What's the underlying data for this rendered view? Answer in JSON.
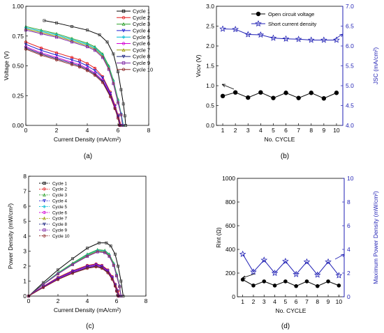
{
  "panel_labels": [
    "(a)",
    "(b)",
    "(c)",
    "(d)"
  ],
  "colors": {
    "cycles": [
      "#000000",
      "#e31a1c",
      "#2ca02c",
      "#1f1fd0",
      "#00bcd4",
      "#d400d4",
      "#9a9a00",
      "#1a237e",
      "#7a1fa2",
      "#8b2323"
    ],
    "cycle1_marker": "#444444",
    "blue_axis": "#1f1fb4"
  },
  "chart_data": [
    {
      "type": "line",
      "panel": "(a)",
      "xlabel": "Current Density (mA/cm²)",
      "ylabel": "Voltage (V)",
      "xlim": [
        0,
        8
      ],
      "ylim": [
        0,
        1.0
      ],
      "xticks": [
        "0",
        "2",
        "4",
        "6",
        "8"
      ],
      "yticks": [
        "0.00",
        "0.25",
        "0.50",
        "0.75",
        "1.00"
      ],
      "legend_position": "top-right",
      "series": [
        {
          "name": "Cycle 1",
          "x": [
            1.2,
            2,
            3,
            4,
            4.8,
            5.3,
            5.7,
            6.0,
            6.2,
            6.35,
            6.45,
            6.5
          ],
          "y": [
            0.88,
            0.86,
            0.83,
            0.8,
            0.76,
            0.7,
            0.6,
            0.45,
            0.3,
            0.18,
            0.08,
            0.0
          ]
        },
        {
          "name": "Cycle 2",
          "x": [
            0,
            1,
            2,
            3,
            3.5,
            4,
            4.5,
            5,
            5.5,
            5.8,
            6.0,
            6.2
          ],
          "y": [
            0.7,
            0.65,
            0.61,
            0.57,
            0.55,
            0.52,
            0.48,
            0.41,
            0.28,
            0.17,
            0.09,
            0.0
          ]
        },
        {
          "name": "Cycle 3",
          "x": [
            0,
            1,
            2,
            3,
            4,
            4.5,
            5,
            5.4,
            5.7,
            6.0,
            6.2,
            6.35
          ],
          "y": [
            0.83,
            0.8,
            0.77,
            0.73,
            0.69,
            0.66,
            0.6,
            0.5,
            0.38,
            0.22,
            0.1,
            0.0
          ]
        },
        {
          "name": "Cycle 4",
          "x": [
            0,
            1,
            2,
            3,
            3.5,
            4,
            4.5,
            5,
            5.5,
            5.8,
            6.0,
            6.15
          ],
          "y": [
            0.68,
            0.63,
            0.59,
            0.55,
            0.53,
            0.5,
            0.46,
            0.4,
            0.27,
            0.16,
            0.08,
            0.0
          ]
        },
        {
          "name": "Cycle 5",
          "x": [
            0,
            1,
            2,
            3,
            4,
            4.5,
            5,
            5.4,
            5.7,
            6.0,
            6.2,
            6.35
          ],
          "y": [
            0.82,
            0.79,
            0.76,
            0.72,
            0.68,
            0.65,
            0.59,
            0.49,
            0.37,
            0.21,
            0.1,
            0.0
          ]
        },
        {
          "name": "Cycle 6",
          "x": [
            0,
            1,
            2,
            3,
            3.5,
            4,
            4.5,
            5,
            5.5,
            5.8,
            6.0,
            6.1
          ],
          "y": [
            0.66,
            0.61,
            0.57,
            0.53,
            0.51,
            0.48,
            0.44,
            0.38,
            0.26,
            0.15,
            0.07,
            0.0
          ]
        },
        {
          "name": "Cycle 7",
          "x": [
            0,
            1,
            2,
            3,
            4,
            4.5,
            5,
            5.4,
            5.7,
            6.0,
            6.2,
            6.3
          ],
          "y": [
            0.81,
            0.78,
            0.75,
            0.71,
            0.67,
            0.64,
            0.58,
            0.48,
            0.36,
            0.2,
            0.09,
            0.0
          ]
        },
        {
          "name": "Cycle 8",
          "x": [
            0,
            1,
            2,
            3,
            3.5,
            4,
            4.5,
            5,
            5.5,
            5.8,
            6.0,
            6.1
          ],
          "y": [
            0.65,
            0.6,
            0.56,
            0.52,
            0.5,
            0.47,
            0.43,
            0.37,
            0.25,
            0.14,
            0.07,
            0.0
          ]
        },
        {
          "name": "Cycle 9",
          "x": [
            0,
            1,
            2,
            3,
            4,
            4.5,
            5,
            5.4,
            5.7,
            6.0,
            6.2,
            6.3
          ],
          "y": [
            0.8,
            0.77,
            0.74,
            0.7,
            0.66,
            0.63,
            0.57,
            0.47,
            0.35,
            0.19,
            0.09,
            0.0
          ]
        },
        {
          "name": "Cycle 10",
          "x": [
            0,
            1,
            2,
            3,
            3.5,
            4,
            4.5,
            5,
            5.5,
            5.8,
            6.0,
            6.1
          ],
          "y": [
            0.64,
            0.59,
            0.55,
            0.51,
            0.49,
            0.46,
            0.42,
            0.36,
            0.24,
            0.14,
            0.06,
            0.0
          ]
        }
      ]
    },
    {
      "type": "line",
      "panel": "(b)",
      "xlabel": "No. CYCLE",
      "ylabel": "Vocv (V)",
      "y2label": "JSC (mA/cm²)",
      "xlim": [
        0.5,
        10.5
      ],
      "ylim": [
        0,
        3.0
      ],
      "y2lim": [
        4.0,
        7.0
      ],
      "categories": [
        "1",
        "2",
        "3",
        "4",
        "5",
        "6",
        "7",
        "8",
        "9",
        "10"
      ],
      "yticks": [
        "0.0",
        "0.5",
        "1.0",
        "1.5",
        "2.0",
        "2.5",
        "3.0"
      ],
      "y2ticks": [
        "4.0",
        "4.5",
        "5.0",
        "5.5",
        "6.0",
        "6.5",
        "7.0"
      ],
      "legend_position": "top-right",
      "series": [
        {
          "name": "Open circuit voltage",
          "axis": "left",
          "marker": "circle",
          "values": [
            0.74,
            0.83,
            0.7,
            0.83,
            0.69,
            0.82,
            0.69,
            0.82,
            0.68,
            0.82
          ]
        },
        {
          "name": "Short current density",
          "axis": "right",
          "marker": "star",
          "values": [
            6.43,
            6.42,
            6.29,
            6.28,
            6.2,
            6.18,
            6.17,
            6.15,
            6.15,
            6.15
          ]
        }
      ]
    },
    {
      "type": "line",
      "panel": "(c)",
      "xlabel": "Current Density (mA/cm²)",
      "ylabel": "Power Density (mW/cm²)",
      "xlim": [
        0,
        8
      ],
      "ylim": [
        0,
        8
      ],
      "xticks": [
        "0",
        "2",
        "4",
        "6",
        "8"
      ],
      "yticks": [
        "0",
        "1",
        "2",
        "3",
        "4",
        "5",
        "6",
        "7",
        "8"
      ],
      "legend_position": "top-left",
      "series": [
        {
          "name": "Cycle 1",
          "x": [
            0,
            1,
            2,
            3,
            4,
            4.8,
            5.3,
            5.6,
            5.9,
            6.1,
            6.3,
            6.45
          ],
          "y": [
            0,
            0.9,
            1.75,
            2.5,
            3.2,
            3.55,
            3.55,
            3.35,
            2.8,
            2.0,
            1.0,
            0.0
          ]
        },
        {
          "name": "Cycle 2",
          "x": [
            0,
            1,
            2,
            3,
            4,
            4.6,
            5.0,
            5.4,
            5.7,
            5.9,
            6.1,
            6.2
          ],
          "y": [
            0,
            0.65,
            1.25,
            1.7,
            2.05,
            2.15,
            2.05,
            1.75,
            1.3,
            0.8,
            0.35,
            0.0
          ]
        },
        {
          "name": "Cycle 3",
          "x": [
            0,
            1,
            2,
            3,
            4,
            4.7,
            5.2,
            5.5,
            5.8,
            6.0,
            6.2,
            6.3
          ],
          "y": [
            0,
            0.8,
            1.55,
            2.2,
            2.8,
            3.1,
            3.05,
            2.8,
            2.2,
            1.5,
            0.7,
            0.0
          ]
        },
        {
          "name": "Cycle 4",
          "x": [
            0,
            1,
            2,
            3,
            4,
            4.6,
            5.0,
            5.4,
            5.7,
            5.9,
            6.05,
            6.15
          ],
          "y": [
            0,
            0.63,
            1.2,
            1.65,
            2.0,
            2.1,
            2.0,
            1.7,
            1.25,
            0.75,
            0.35,
            0.0
          ]
        },
        {
          "name": "Cycle 5",
          "x": [
            0,
            1,
            2,
            3,
            4,
            4.7,
            5.2,
            5.5,
            5.8,
            6.0,
            6.2,
            6.3
          ],
          "y": [
            0,
            0.79,
            1.52,
            2.15,
            2.75,
            3.05,
            3.0,
            2.75,
            2.15,
            1.45,
            0.68,
            0.0
          ]
        },
        {
          "name": "Cycle 6",
          "x": [
            0,
            1,
            2,
            3,
            4,
            4.6,
            5.0,
            5.4,
            5.7,
            5.9,
            6.0,
            6.1
          ],
          "y": [
            0,
            0.6,
            1.15,
            1.6,
            1.95,
            2.05,
            1.95,
            1.65,
            1.2,
            0.7,
            0.35,
            0.0
          ]
        },
        {
          "name": "Cycle 7",
          "x": [
            0,
            1,
            2,
            3,
            4,
            4.7,
            5.2,
            5.5,
            5.8,
            6.0,
            6.2,
            6.3
          ],
          "y": [
            0,
            0.78,
            1.5,
            2.12,
            2.7,
            3.0,
            2.95,
            2.7,
            2.1,
            1.4,
            0.65,
            0.0
          ]
        },
        {
          "name": "Cycle 8",
          "x": [
            0,
            1,
            2,
            3,
            4,
            4.6,
            5.0,
            5.4,
            5.7,
            5.9,
            6.0,
            6.1
          ],
          "y": [
            0,
            0.58,
            1.12,
            1.55,
            1.9,
            2.0,
            1.9,
            1.6,
            1.15,
            0.68,
            0.33,
            0.0
          ]
        },
        {
          "name": "Cycle 9",
          "x": [
            0,
            1,
            2,
            3,
            4,
            4.7,
            5.2,
            5.5,
            5.8,
            6.0,
            6.2,
            6.3
          ],
          "y": [
            0,
            0.77,
            1.48,
            2.1,
            2.65,
            2.95,
            2.9,
            2.65,
            2.05,
            1.35,
            0.63,
            0.0
          ]
        },
        {
          "name": "Cycle 10",
          "x": [
            0,
            1,
            2,
            3,
            4,
            4.6,
            5.0,
            5.4,
            5.7,
            5.9,
            6.0,
            6.1
          ],
          "y": [
            0,
            0.57,
            1.1,
            1.52,
            1.85,
            1.95,
            1.85,
            1.55,
            1.12,
            0.66,
            0.32,
            0.0
          ]
        }
      ]
    },
    {
      "type": "line",
      "panel": "(d)",
      "xlabel": "No. CYCLE",
      "ylabel": "Rint (Ω)",
      "y2label": "Maximum Power Density (mW/cm²)",
      "xlim": [
        0.5,
        10.5
      ],
      "ylim": [
        0,
        1000
      ],
      "y2lim": [
        0,
        10
      ],
      "categories": [
        "1",
        "2",
        "3",
        "4",
        "5",
        "6",
        "7",
        "8",
        "9",
        "10"
      ],
      "yticks": [
        "0",
        "200",
        "400",
        "600",
        "800",
        "1000"
      ],
      "y2ticks": [
        "0",
        "2",
        "4",
        "6",
        "8",
        "10"
      ],
      "series": [
        {
          "name": "Rint",
          "axis": "left",
          "marker": "circle",
          "values": [
            145,
            95,
            130,
            95,
            130,
            90,
            130,
            90,
            130,
            95
          ]
        },
        {
          "name": "Maximum Power Density",
          "axis": "right",
          "marker": "star",
          "values": [
            3.6,
            2.1,
            3.1,
            2.0,
            3.0,
            1.9,
            2.95,
            1.85,
            2.95,
            1.8
          ]
        }
      ]
    }
  ]
}
